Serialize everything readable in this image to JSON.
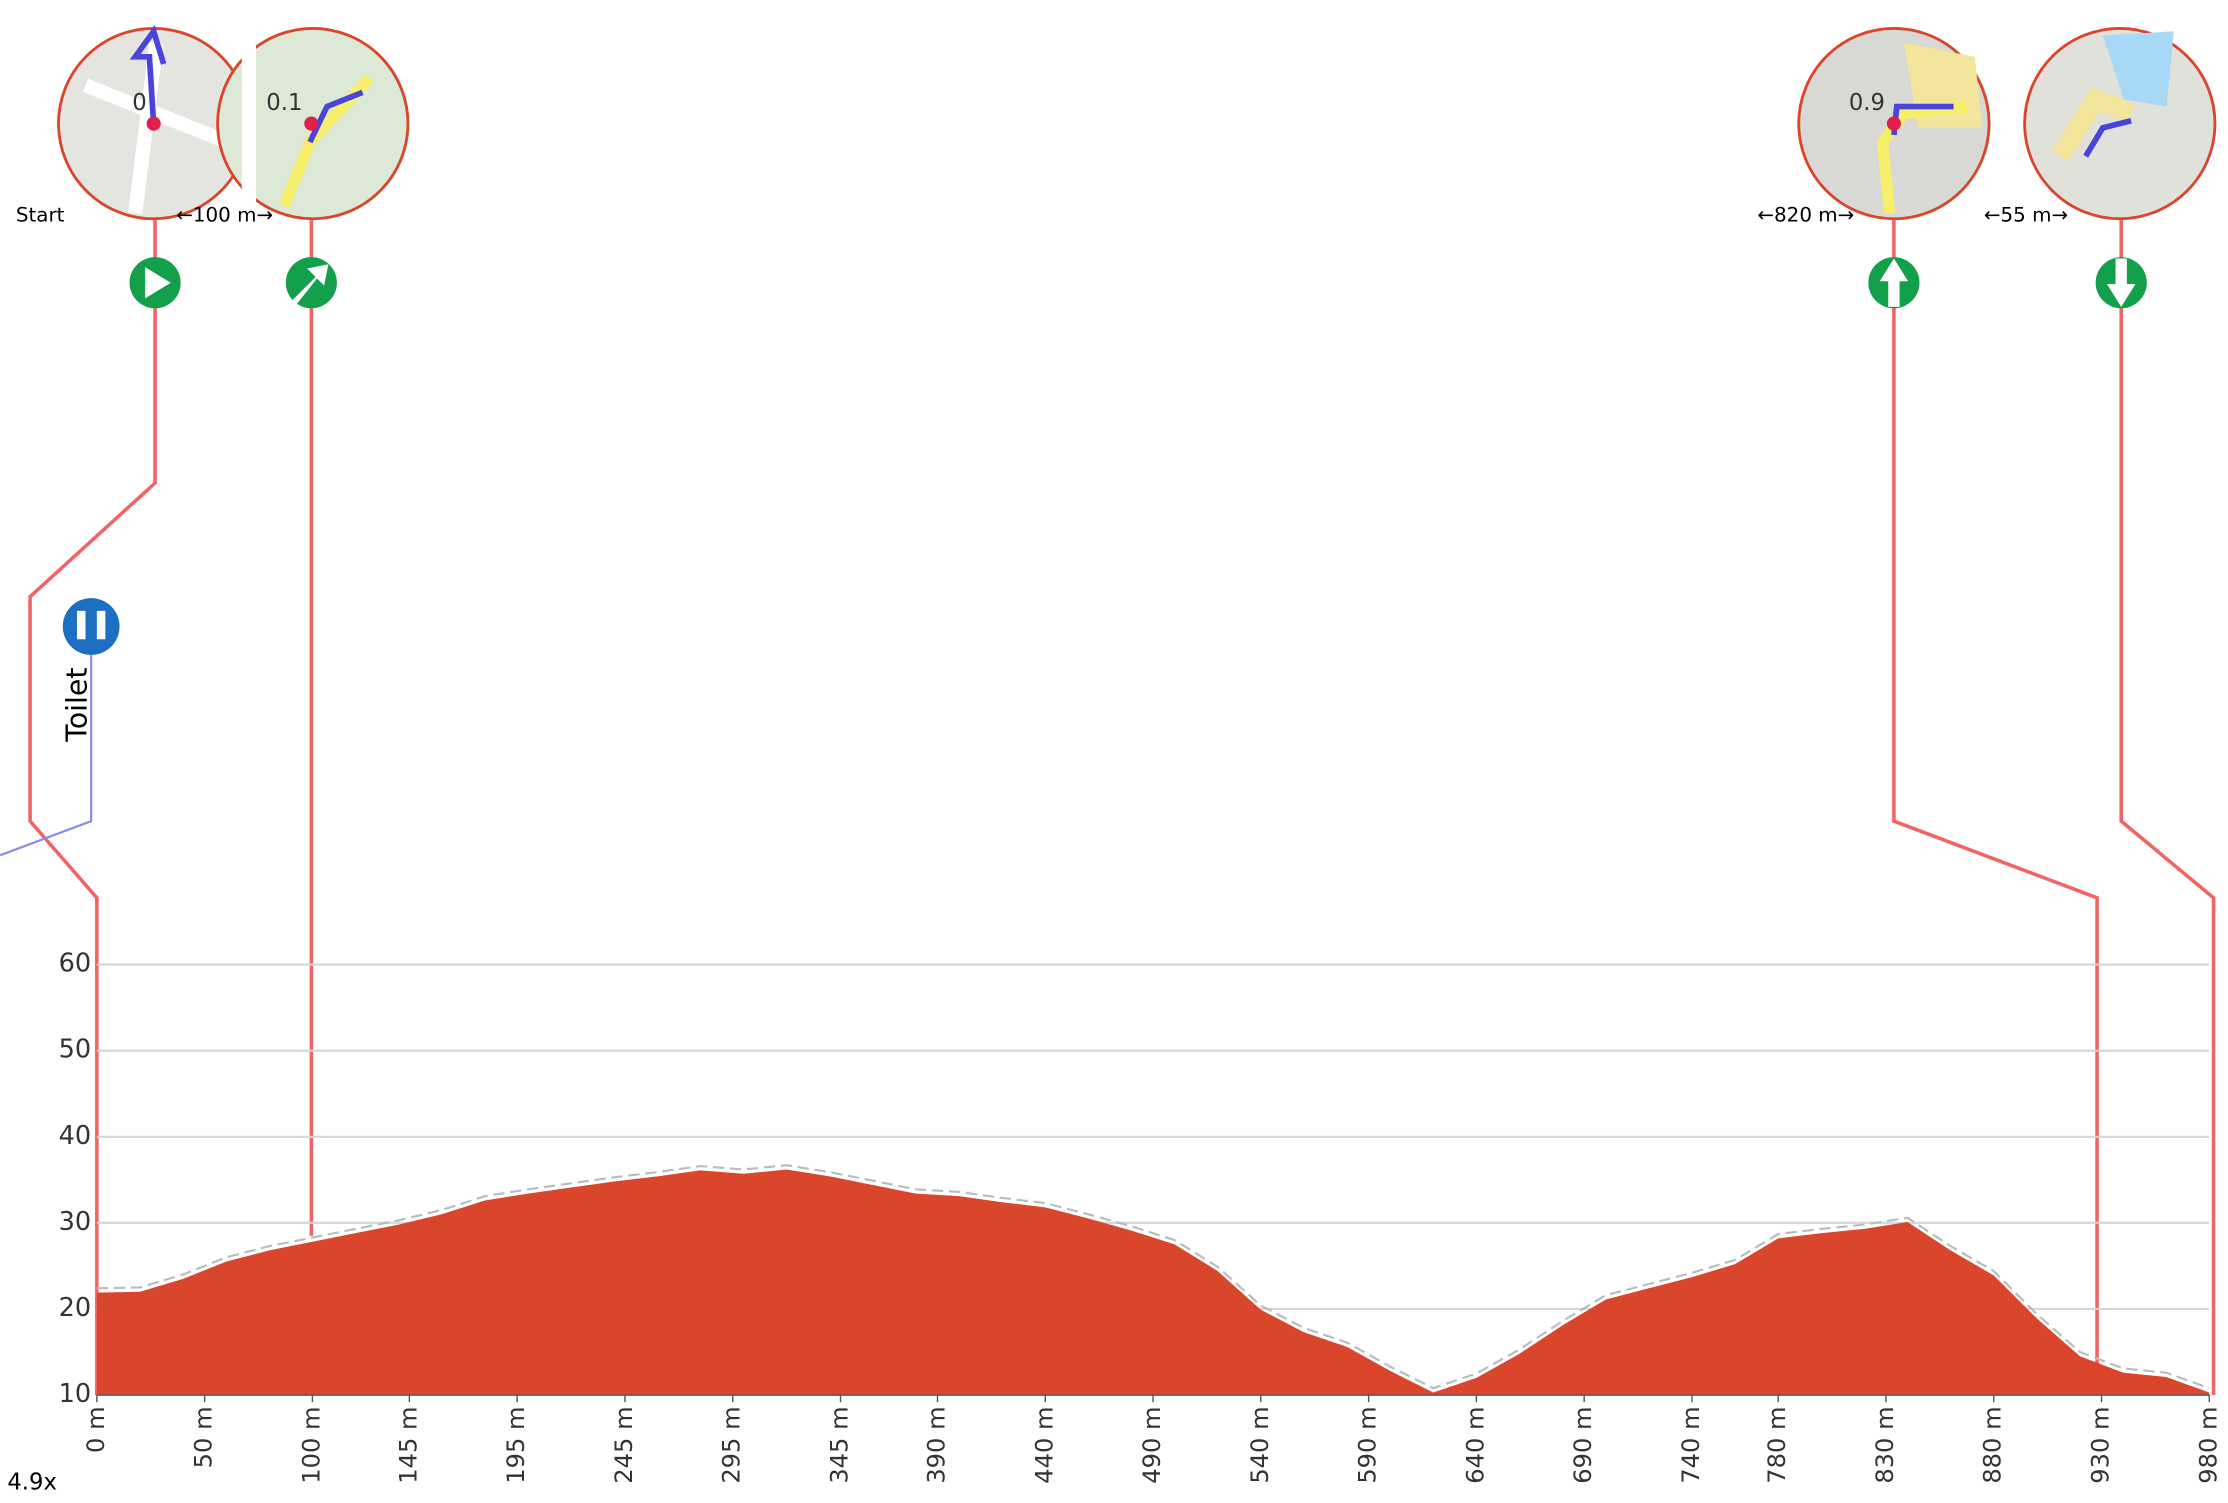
{
  "chart_data": {
    "type": "area",
    "x": [
      0,
      20,
      40,
      60,
      80,
      100,
      120,
      140,
      160,
      180,
      200,
      220,
      240,
      260,
      280,
      300,
      320,
      340,
      360,
      380,
      400,
      420,
      440,
      460,
      480,
      500,
      520,
      540,
      560,
      580,
      600,
      620,
      640,
      660,
      680,
      700,
      720,
      740,
      760,
      780,
      800,
      820,
      840,
      860,
      880,
      900,
      920,
      940,
      960,
      980
    ],
    "values": [
      21.9,
      22,
      23.5,
      25.5,
      26.8,
      27.8,
      28.8,
      29.8,
      31,
      32.6,
      33.4,
      34.1,
      34.8,
      35.4,
      36.1,
      35.7,
      36.2,
      35.4,
      34.4,
      33.4,
      33.1,
      32.4,
      31.8,
      30.5,
      29.1,
      27.5,
      24.4,
      19.9,
      17.3,
      15.6,
      12.8,
      10.3,
      12,
      14.8,
      18.1,
      21.1,
      22.4,
      23.7,
      25.2,
      28.2,
      28.8,
      29.3,
      30.1,
      26.8,
      23.9,
      18.9,
      14.5,
      12.6,
      12.1,
      10.3
    ],
    "color": "#d9462b",
    "xlim": [
      0,
      980
    ],
    "ylim": [
      10,
      60
    ],
    "xticks": [
      {
        "value": 0,
        "label": "0 m"
      },
      {
        "value": 50,
        "label": "50 m"
      },
      {
        "value": 100,
        "label": "100 m"
      },
      {
        "value": 145,
        "label": "145 m"
      },
      {
        "value": 195,
        "label": "195 m"
      },
      {
        "value": 245,
        "label": "245 m"
      },
      {
        "value": 295,
        "label": "295 m"
      },
      {
        "value": 345,
        "label": "345 m"
      },
      {
        "value": 390,
        "label": "390 m"
      },
      {
        "value": 440,
        "label": "440 m"
      },
      {
        "value": 490,
        "label": "490 m"
      },
      {
        "value": 540,
        "label": "540 m"
      },
      {
        "value": 590,
        "label": "590 m"
      },
      {
        "value": 640,
        "label": "640 m"
      },
      {
        "value": 690,
        "label": "690 m"
      },
      {
        "value": 740,
        "label": "740 m"
      },
      {
        "value": 780,
        "label": "780 m"
      },
      {
        "value": 830,
        "label": "830 m"
      },
      {
        "value": 880,
        "label": "880 m"
      },
      {
        "value": 930,
        "label": "930 m"
      },
      {
        "value": 980,
        "label": "980 m"
      }
    ],
    "yticks": [
      10,
      20,
      30,
      40,
      50,
      60
    ],
    "grid": true,
    "cues": [
      {
        "label": "Start",
        "km": 0
      },
      {
        "km": 0.1,
        "gap": "←100 m→"
      },
      {
        "km": 0.9,
        "gap": "←820 m→"
      },
      {
        "gap": "←55 m→"
      }
    ],
    "poi": "Toilet",
    "zoom": "4.9x"
  }
}
